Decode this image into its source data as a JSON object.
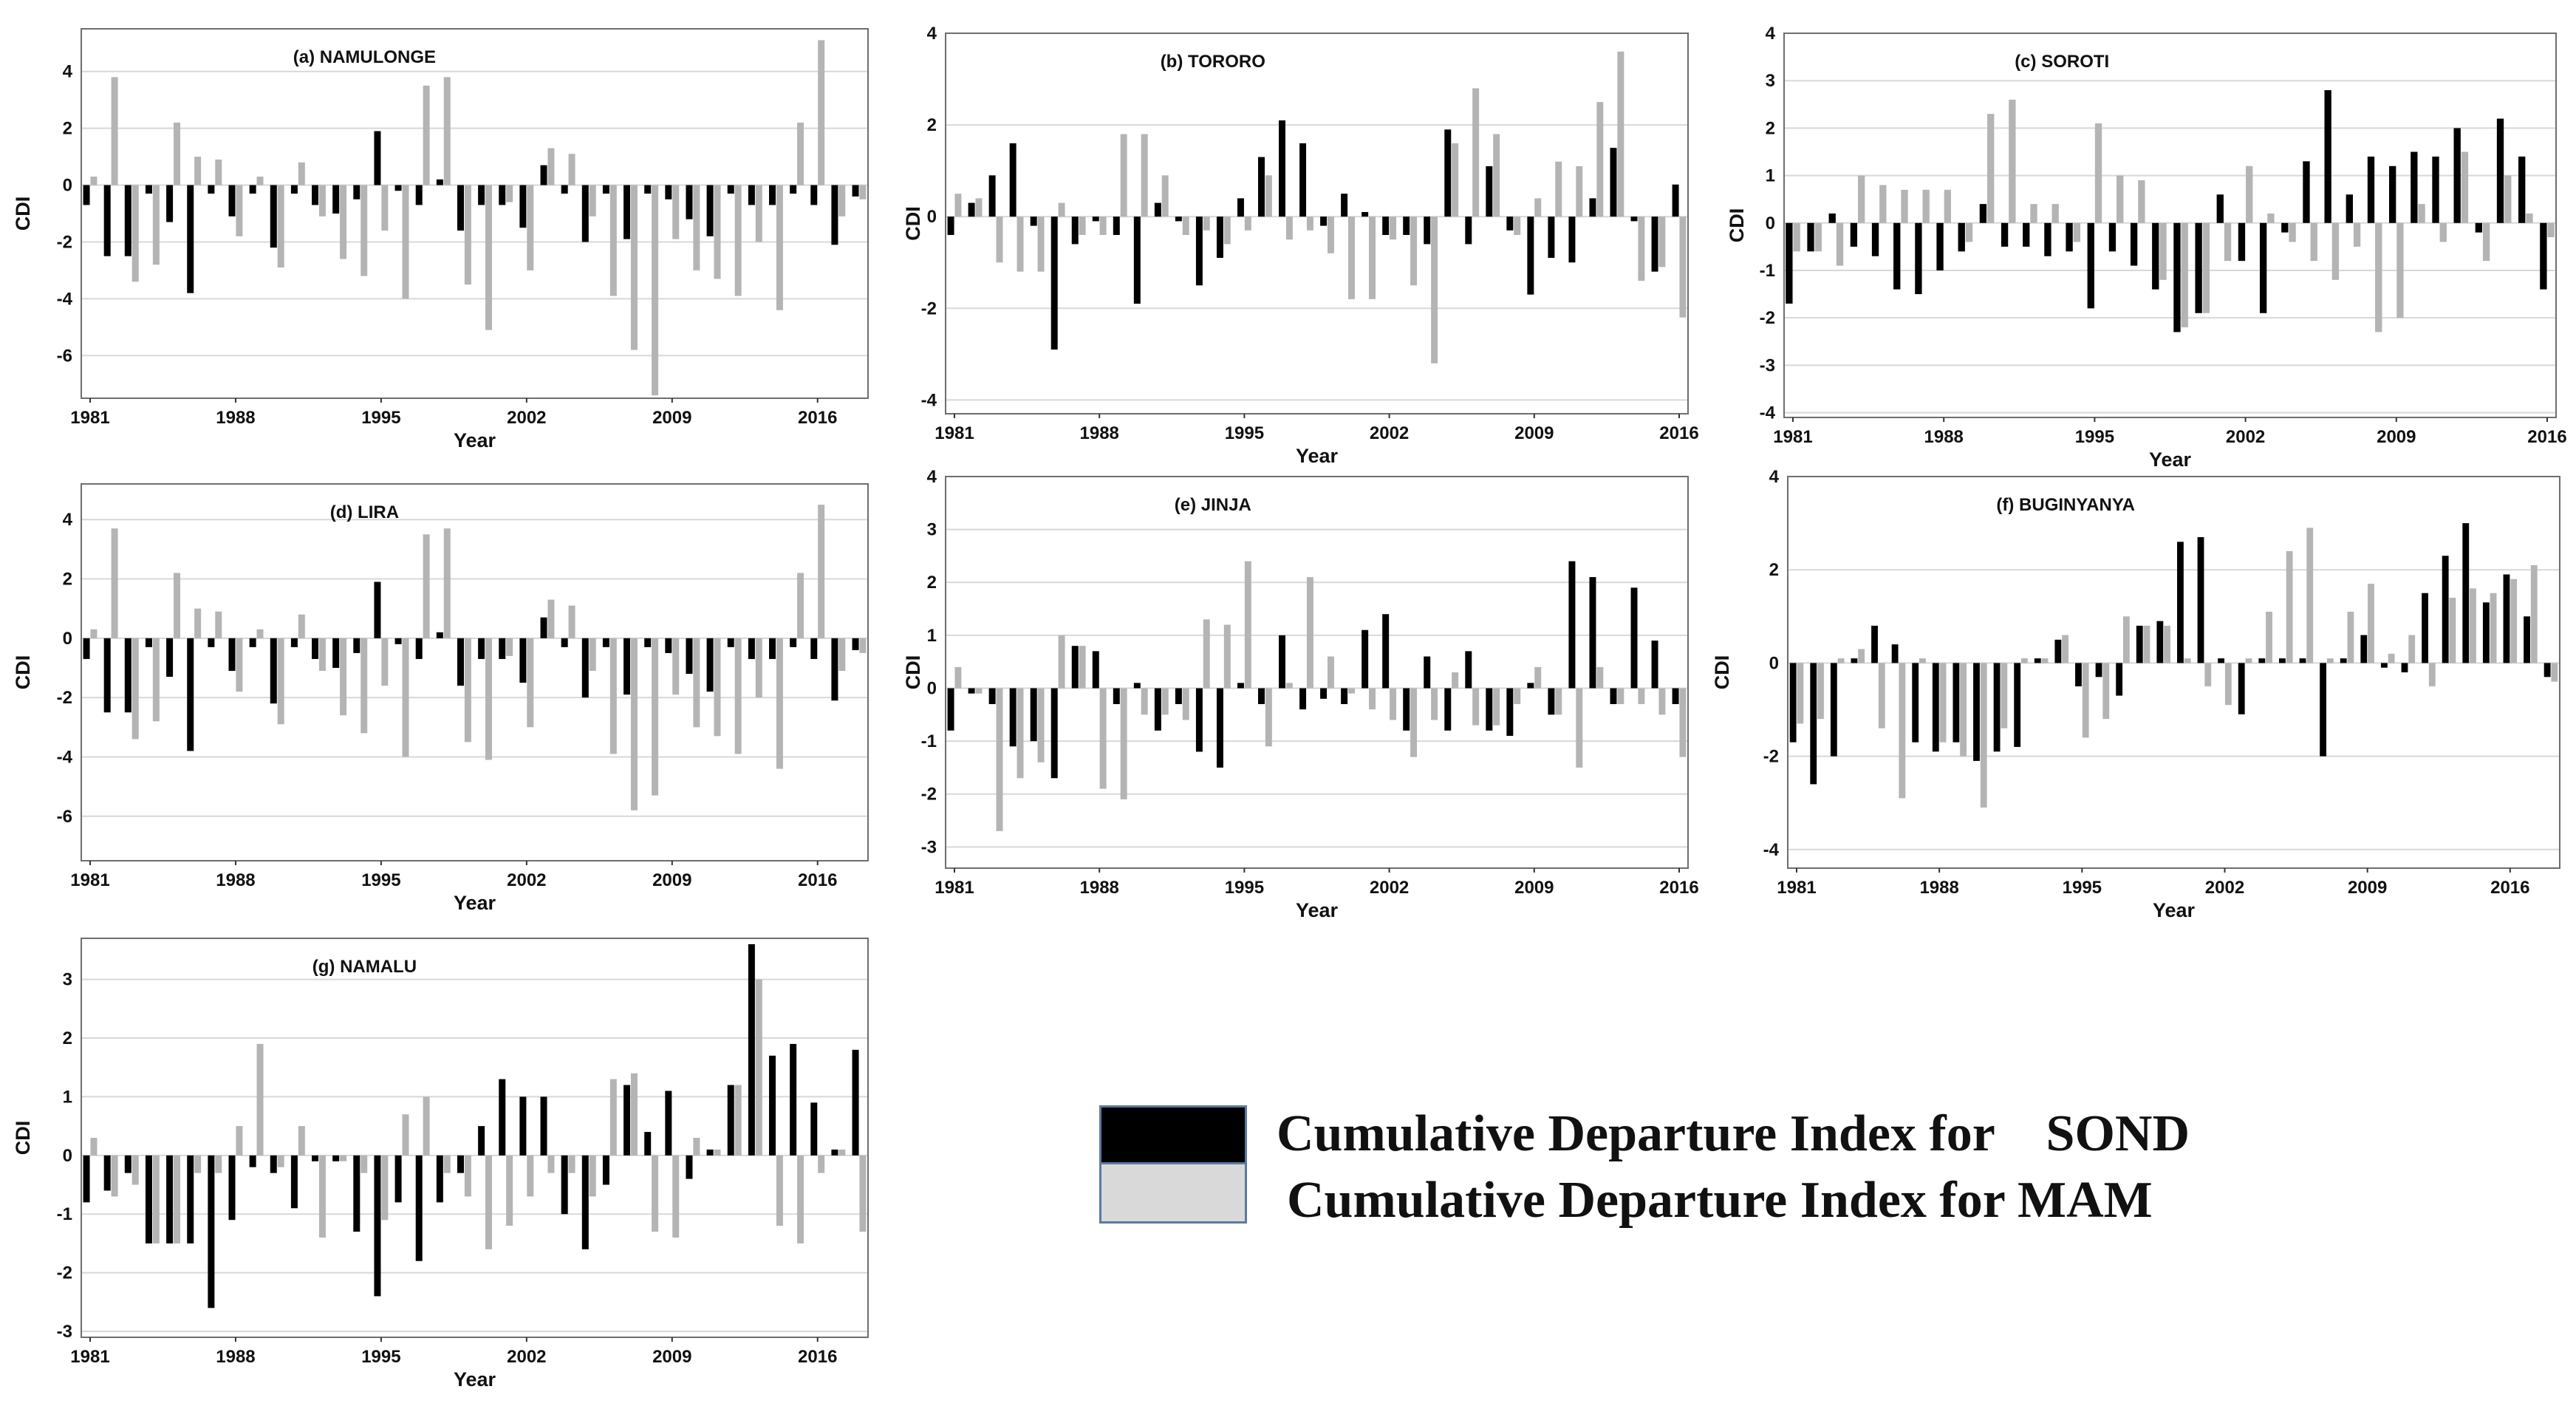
{
  "colors": {
    "sond": "#000000",
    "mam": "#b4b4b4",
    "grid": "#d8d8d8",
    "frame": "#6e6e6e"
  },
  "legend": {
    "sond_label": "Cumulative Departure Index for    SOND",
    "mam_label": "Cumulative Departure Index for MAM"
  },
  "chart_data": [
    {
      "type": "bar",
      "title": "(a) NAMULONGE",
      "xlabel": "Year",
      "ylabel": "CDI",
      "ylim": [
        -7.5,
        5.5
      ],
      "yticks": [
        4,
        2,
        0,
        -2,
        -4,
        -6
      ],
      "xticks": [
        "1981",
        "1988",
        "1995",
        "2002",
        "2009",
        "2016"
      ],
      "start_year": 1981,
      "series": [
        {
          "name": "SOND",
          "values": [
            -0.7,
            -2.5,
            -2.5,
            -0.3,
            -1.3,
            -3.8,
            -0.3,
            -1.1,
            -0.3,
            -2.2,
            -0.3,
            -0.7,
            -1.0,
            -0.5,
            1.9,
            -0.2,
            -0.7,
            0.2,
            -1.6,
            -0.7,
            -0.7,
            -1.5,
            0.7,
            -0.3,
            -2.0,
            -0.3,
            -1.9,
            -0.3,
            -0.5,
            -1.2,
            -1.8,
            -0.3,
            -0.7,
            -0.7,
            -0.3,
            -0.7,
            -2.1,
            -0.4
          ]
        },
        {
          "name": "MAM",
          "values": [
            0.3,
            3.8,
            -3.4,
            -2.8,
            2.2,
            1.0,
            0.9,
            -1.8,
            0.3,
            -2.9,
            0.8,
            -1.1,
            -2.6,
            -3.2,
            -1.6,
            -4.0,
            3.5,
            3.8,
            -3.5,
            -5.1,
            -0.6,
            -3.0,
            1.3,
            1.1,
            -1.1,
            -3.9,
            -5.8,
            -7.4,
            -1.9,
            -3.0,
            -3.3,
            -3.9,
            -2.0,
            -4.4,
            2.2,
            5.1,
            -1.1,
            -0.5
          ]
        }
      ]
    },
    {
      "type": "bar",
      "title": "(b) TORORO",
      "xlabel": "Year",
      "ylabel": "CDI",
      "ylim": [
        -4.3,
        4.0
      ],
      "yticks": [
        4,
        2,
        0,
        -2,
        -4
      ],
      "xticks": [
        "1981",
        "1988",
        "1995",
        "2002",
        "2009",
        "2016"
      ],
      "start_year": 1981,
      "series": [
        {
          "name": "SOND",
          "values": [
            -0.4,
            0.3,
            0.9,
            1.6,
            -0.2,
            -2.9,
            -0.6,
            -0.1,
            -0.4,
            -1.9,
            0.3,
            -0.1,
            -1.5,
            -0.9,
            0.4,
            1.3,
            2.1,
            1.6,
            -0.2,
            0.5,
            0.1,
            -0.4,
            -0.4,
            -0.6,
            1.9,
            -0.6,
            1.1,
            -0.3,
            -1.7,
            -0.9,
            -1.0,
            0.4,
            1.5,
            -0.1,
            -1.2,
            0.7
          ]
        },
        {
          "name": "MAM",
          "values": [
            0.5,
            0.4,
            -1.0,
            -1.2,
            -1.2,
            0.3,
            -0.4,
            -0.4,
            1.8,
            1.8,
            0.9,
            -0.4,
            -0.3,
            -0.6,
            -0.3,
            0.9,
            -0.5,
            -0.3,
            -0.8,
            -1.8,
            -1.8,
            -0.5,
            -1.5,
            -3.2,
            1.6,
            2.8,
            1.8,
            -0.4,
            0.4,
            1.2,
            1.1,
            2.5,
            3.6,
            -1.4,
            -1.1,
            -2.2
          ]
        }
      ]
    },
    {
      "type": "bar",
      "title": "(c) SOROTI",
      "xlabel": "Year",
      "ylabel": "CDI",
      "ylim": [
        -4.1,
        4.0
      ],
      "yticks": [
        4,
        3,
        2,
        1,
        0,
        -1,
        -2,
        -3,
        -4
      ],
      "xticks": [
        "1981",
        "1988",
        "1995",
        "2002",
        "2009",
        "2016"
      ],
      "start_year": 1981,
      "series": [
        {
          "name": "SOND",
          "values": [
            -1.7,
            -0.6,
            0.2,
            -0.5,
            -0.7,
            -1.4,
            -1.5,
            -1.0,
            -0.6,
            0.4,
            -0.5,
            -0.5,
            -0.7,
            -0.6,
            -1.8,
            -0.6,
            -0.9,
            -1.4,
            -2.3,
            -1.9,
            0.6,
            -0.8,
            -1.9,
            -0.2,
            1.3,
            2.8,
            0.6,
            1.4,
            1.2,
            1.5,
            1.4,
            2.0,
            -0.2,
            2.2,
            1.4,
            -1.4
          ]
        },
        {
          "name": "MAM",
          "values": [
            -0.6,
            -0.6,
            -0.9,
            1.0,
            0.8,
            0.7,
            0.7,
            0.7,
            -0.4,
            2.3,
            2.6,
            0.4,
            0.4,
            -0.4,
            2.1,
            1.0,
            0.9,
            -1.2,
            -2.2,
            -1.9,
            -0.8,
            1.2,
            0.2,
            -0.4,
            -0.8,
            -1.2,
            -0.5,
            -2.3,
            -2.0,
            0.4,
            -0.4,
            1.5,
            -0.8,
            1.0,
            0.2,
            -0.3
          ]
        }
      ]
    },
    {
      "type": "bar",
      "title": "(d) LIRA",
      "xlabel": "Year",
      "ylabel": "CDI",
      "ylim": [
        -7.5,
        5.2
      ],
      "yticks": [
        4,
        2,
        0,
        -2,
        -4,
        -6
      ],
      "xticks": [
        "1981",
        "1988",
        "1995",
        "2002",
        "2009",
        "2016"
      ],
      "start_year": 1981,
      "series": [
        {
          "name": "SOND",
          "values": [
            -0.7,
            -2.5,
            -2.5,
            -0.3,
            -1.3,
            -3.8,
            -0.3,
            -1.1,
            -0.3,
            -2.2,
            -0.3,
            -0.7,
            -1.0,
            -0.5,
            1.9,
            -0.2,
            -0.7,
            0.2,
            -1.6,
            -0.7,
            -0.7,
            -1.5,
            0.7,
            -0.3,
            -2.0,
            -0.3,
            -1.9,
            -0.3,
            -0.5,
            -1.2,
            -1.8,
            -0.3,
            -0.7,
            -0.7,
            -0.3,
            -0.7,
            -2.1,
            -0.4
          ]
        },
        {
          "name": "MAM",
          "values": [
            0.3,
            3.7,
            -3.4,
            -2.8,
            2.2,
            1.0,
            0.9,
            -1.8,
            0.3,
            -2.9,
            0.8,
            -1.1,
            -2.6,
            -3.2,
            -1.6,
            -4.0,
            3.5,
            3.7,
            -3.5,
            -4.1,
            -0.6,
            -3.0,
            1.3,
            1.1,
            -1.1,
            -3.9,
            -5.8,
            -5.3,
            -1.9,
            -3.0,
            -3.3,
            -3.9,
            -2.0,
            -4.4,
            2.2,
            4.5,
            -1.1,
            -0.5
          ]
        }
      ]
    },
    {
      "type": "bar",
      "title": "(e) JINJA",
      "xlabel": "Year",
      "ylabel": "CDI",
      "ylim": [
        -3.4,
        4.0
      ],
      "yticks": [
        4,
        3,
        2,
        1,
        0,
        -1,
        -2,
        -3
      ],
      "xticks": [
        "1981",
        "1988",
        "1995",
        "2002",
        "2009",
        "2016"
      ],
      "start_year": 1981,
      "series": [
        {
          "name": "SOND",
          "values": [
            -0.8,
            -0.1,
            -0.3,
            -1.1,
            -1.0,
            -1.7,
            0.8,
            0.7,
            -0.3,
            0.1,
            -0.8,
            -0.3,
            -1.2,
            -1.5,
            0.1,
            -0.3,
            1.0,
            -0.4,
            -0.2,
            -0.3,
            1.1,
            1.4,
            -0.8,
            0.6,
            -0.8,
            0.7,
            -0.8,
            -0.9,
            0.1,
            -0.5,
            2.4,
            2.1,
            -0.3,
            1.9,
            0.9,
            -0.3
          ]
        },
        {
          "name": "MAM",
          "values": [
            0.4,
            -0.1,
            -2.7,
            -1.7,
            -1.4,
            1.0,
            0.8,
            -1.9,
            -2.1,
            -0.5,
            -0.5,
            -0.6,
            1.3,
            1.2,
            2.4,
            -1.1,
            0.1,
            2.1,
            0.6,
            -0.1,
            -0.4,
            -0.6,
            -1.3,
            -0.6,
            0.3,
            -0.7,
            -0.7,
            -0.3,
            0.4,
            -0.5,
            -1.5,
            0.4,
            -0.3,
            -0.3,
            -0.5,
            -1.3
          ]
        }
      ]
    },
    {
      "type": "bar",
      "title": "(f) BUGINYANYA",
      "xlabel": "Year",
      "ylabel": "CDI",
      "ylim": [
        -4.4,
        4.0
      ],
      "yticks": [
        4,
        2,
        0,
        -2,
        -4
      ],
      "xticks": [
        "1981",
        "1988",
        "1995",
        "2002",
        "2009",
        "2016"
      ],
      "start_year": 1981,
      "series": [
        {
          "name": "SOND",
          "values": [
            -1.7,
            -2.6,
            -2.0,
            0.1,
            0.8,
            0.4,
            -1.7,
            -1.9,
            -1.7,
            -2.1,
            -1.9,
            -1.8,
            0.1,
            0.5,
            -0.5,
            -0.3,
            -0.7,
            0.8,
            0.9,
            2.6,
            2.7,
            0.1,
            -1.1,
            0.1,
            0.1,
            0.1,
            -2.0,
            0.1,
            0.6,
            -0.1,
            -0.2,
            1.5,
            2.3,
            3.0,
            1.3,
            1.9,
            1.0,
            -0.3
          ]
        },
        {
          "name": "MAM",
          "values": [
            -1.3,
            -1.2,
            0.1,
            0.3,
            -1.4,
            -2.9,
            0.1,
            -1.7,
            -2.0,
            -3.1,
            -1.4,
            0.1,
            0.1,
            0.6,
            -1.6,
            -1.2,
            1.0,
            0.8,
            0.8,
            0.1,
            -0.5,
            -0.9,
            0.1,
            1.1,
            2.4,
            2.9,
            0.1,
            1.1,
            1.7,
            0.2,
            0.6,
            -0.5,
            1.4,
            1.6,
            1.5,
            1.8,
            2.1,
            -0.4
          ]
        }
      ]
    },
    {
      "type": "bar",
      "title": "(g) NAMALU",
      "xlabel": "Year",
      "ylabel": "CDI",
      "ylim": [
        -3.1,
        3.7
      ],
      "yticks": [
        3,
        2,
        1,
        0,
        -1,
        -2,
        -3
      ],
      "xticks": [
        "1981",
        "1988",
        "1995",
        "2002",
        "2009",
        "2016"
      ],
      "start_year": 1981,
      "series": [
        {
          "name": "SOND",
          "values": [
            -0.8,
            -0.6,
            -0.3,
            -1.5,
            -1.5,
            -1.5,
            -2.6,
            -1.1,
            -0.2,
            -0.3,
            -0.9,
            -0.1,
            -0.1,
            -1.3,
            -2.4,
            -0.8,
            -1.8,
            -0.8,
            -0.3,
            0.5,
            1.3,
            1.0,
            1.0,
            -1.0,
            -1.6,
            -0.5,
            1.2,
            0.4,
            1.1,
            -0.4,
            0.1,
            1.2,
            3.6,
            1.7,
            1.9,
            0.9,
            0.1,
            1.8
          ]
        },
        {
          "name": "MAM",
          "values": [
            0.3,
            -0.7,
            -0.5,
            -1.5,
            -1.5,
            -0.3,
            -0.3,
            0.5,
            1.9,
            -0.2,
            0.5,
            -1.4,
            -0.1,
            -0.3,
            -1.1,
            0.7,
            1.0,
            -0.3,
            -0.7,
            -1.6,
            -1.2,
            -0.7,
            -0.3,
            -0.3,
            -0.7,
            1.3,
            1.4,
            -1.3,
            -1.4,
            0.3,
            0.1,
            1.2,
            3.0,
            -1.2,
            -1.5,
            -0.3,
            0.1,
            -1.3
          ]
        }
      ]
    }
  ]
}
